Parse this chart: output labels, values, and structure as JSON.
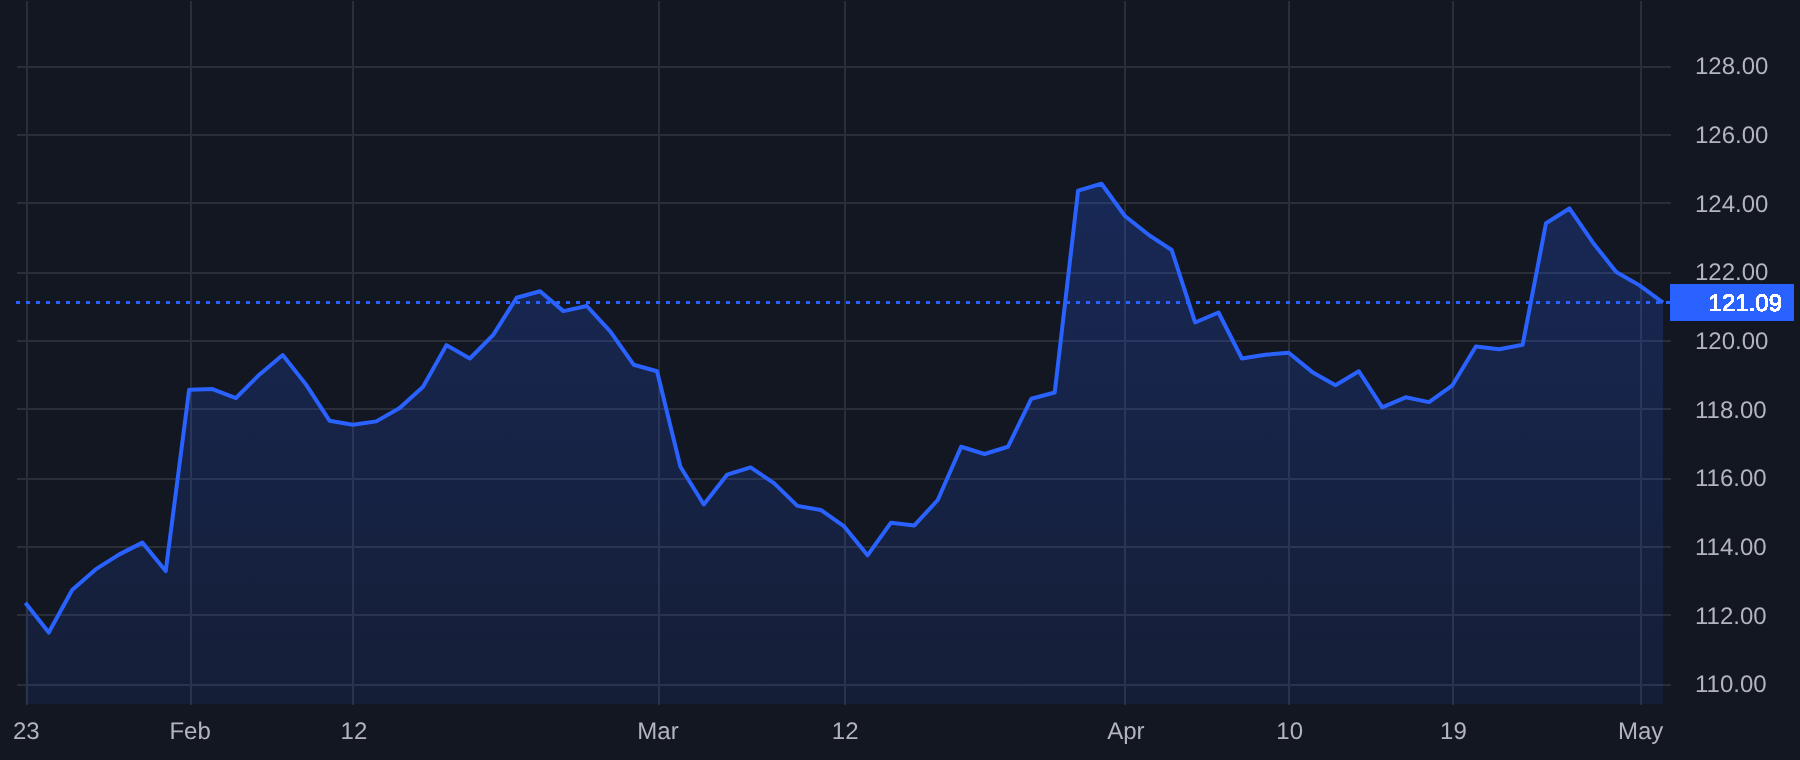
{
  "chart_data": {
    "type": "area",
    "color": "#2962ff",
    "categories": [
      "23",
      null,
      null,
      null,
      null,
      null,
      null,
      "Feb",
      null,
      null,
      null,
      null,
      null,
      null,
      "12",
      null,
      null,
      null,
      null,
      null,
      null,
      null,
      null,
      null,
      null,
      null,
      null,
      "Mar",
      null,
      null,
      null,
      null,
      null,
      null,
      null,
      "12",
      null,
      null,
      null,
      null,
      null,
      null,
      null,
      null,
      null,
      null,
      null,
      "Apr",
      null,
      null,
      null,
      null,
      null,
      null,
      "10",
      null,
      null,
      null,
      null,
      null,
      null,
      "19",
      null,
      null,
      null,
      null,
      null,
      null,
      null,
      "May",
      null
    ],
    "values": [
      112.35,
      111.48,
      112.72,
      113.32,
      113.75,
      114.1,
      113.27,
      118.55,
      118.57,
      118.31,
      118.99,
      119.56,
      118.7,
      117.65,
      117.53,
      117.63,
      118.02,
      118.64,
      119.85,
      119.46,
      120.15,
      121.23,
      121.42,
      120.84,
      120.99,
      120.25,
      119.28,
      119.09,
      116.31,
      115.21,
      116.08,
      116.29,
      115.83,
      115.17,
      115.05,
      114.57,
      113.73,
      114.68,
      114.6,
      115.34,
      116.89,
      116.68,
      116.89,
      118.29,
      118.47,
      124.35,
      124.55,
      123.61,
      123.07,
      122.62,
      120.51,
      120.8,
      119.46,
      119.57,
      119.63,
      119.07,
      118.68,
      119.09,
      118.04,
      118.33,
      118.19,
      118.68,
      119.81,
      119.73,
      119.86,
      123.4,
      123.83,
      122.84,
      121.98,
      121.59,
      121.09
    ],
    "ylim": [
      109.4,
      129.9
    ],
    "yticks": [
      {
        "value": 110,
        "label": "110.00"
      },
      {
        "value": 112,
        "label": "112.00"
      },
      {
        "value": 114,
        "label": "114.00"
      },
      {
        "value": 116,
        "label": "116.00"
      },
      {
        "value": 118,
        "label": "118.00"
      },
      {
        "value": 120,
        "label": "120.00"
      },
      {
        "value": 122,
        "label": "122.00"
      },
      {
        "value": 124,
        "label": "124.00"
      },
      {
        "value": 126,
        "label": "126.00"
      },
      {
        "value": 128,
        "label": "128.00"
      }
    ],
    "grid": true,
    "ref_lines": [
      {
        "axis": "y",
        "value": 121.09,
        "label": "121.09",
        "color": "#2962ff",
        "line_style": "dotted"
      }
    ]
  }
}
